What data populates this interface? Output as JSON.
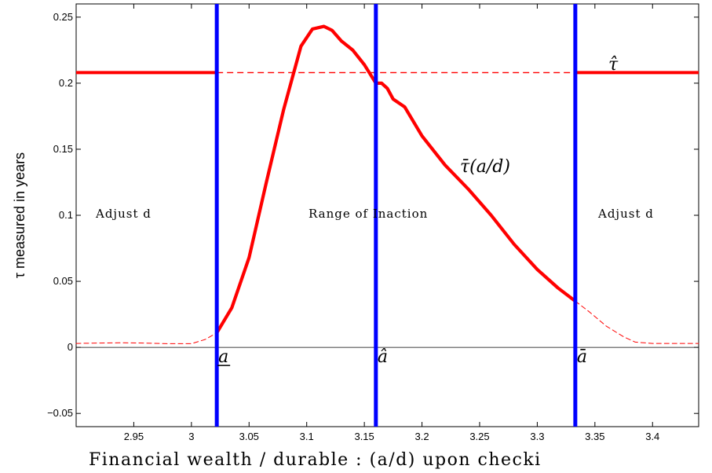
{
  "chart_data": {
    "type": "line",
    "xlabel": "Financial wealth / durable : (a/d) upon checki",
    "ylabel": "τ measured in years",
    "xlim": [
      2.9,
      3.44
    ],
    "ylim": [
      -0.06,
      0.26
    ],
    "xticks": [
      2.95,
      3,
      3.05,
      3.1,
      3.15,
      3.2,
      3.25,
      3.3,
      3.35,
      3.4
    ],
    "xtick_labels": [
      "2.95",
      "3",
      "3.05",
      "3.1",
      "3.15",
      "3.2",
      "3.25",
      "3.3",
      "3.35",
      "3.4"
    ],
    "yticks": [
      -0.05,
      0,
      0.05,
      0.1,
      0.15,
      0.2,
      0.25
    ],
    "ytick_labels": [
      "−0.05",
      "0",
      "0.05",
      "0.1",
      "0.15",
      "0.2",
      "0.25"
    ],
    "grid": false,
    "tau_hat": 0.208,
    "zero_line": 0,
    "thresholds": [
      {
        "x": 3.022,
        "label": "a",
        "label_style": "underline"
      },
      {
        "x": 3.16,
        "label": "â",
        "label_style": "plain"
      },
      {
        "x": 3.333,
        "label": "ā",
        "label_style": "plain"
      }
    ],
    "annotations": {
      "tau_hat_label": "τ̂",
      "curve_label": "τ̄(a/d)",
      "adjust_left": "Adjust d",
      "inaction": "Range of Inaction",
      "adjust_right": "Adjust d"
    },
    "series": [
      {
        "style": "solid",
        "color": "#ff0000",
        "x": [
          3.022,
          3.035,
          3.05,
          3.065,
          3.08,
          3.095,
          3.105,
          3.115,
          3.122,
          3.13,
          3.14,
          3.15,
          3.16,
          3.165,
          3.17,
          3.175,
          3.185,
          3.2,
          3.22,
          3.24,
          3.26,
          3.28,
          3.3,
          3.318,
          3.333
        ],
        "y": [
          0.011,
          0.03,
          0.068,
          0.125,
          0.18,
          0.228,
          0.241,
          0.243,
          0.24,
          0.232,
          0.225,
          0.214,
          0.2,
          0.2,
          0.196,
          0.188,
          0.182,
          0.16,
          0.138,
          0.12,
          0.1,
          0.078,
          0.059,
          0.045,
          0.035
        ]
      },
      {
        "style": "dashed",
        "color": "#ff0000",
        "x": [
          2.9,
          2.92,
          2.94,
          2.96,
          2.98,
          3.0,
          3.012,
          3.022
        ],
        "y": [
          0.003,
          0.0033,
          0.0035,
          0.0032,
          0.0028,
          0.0028,
          0.006,
          0.011
        ]
      },
      {
        "style": "dashed",
        "color": "#ff0000",
        "x": [
          3.333,
          3.345,
          3.36,
          3.375,
          3.385,
          3.4,
          3.42,
          3.44
        ],
        "y": [
          0.035,
          0.027,
          0.016,
          0.008,
          0.004,
          0.003,
          0.003,
          0.003
        ]
      }
    ]
  }
}
